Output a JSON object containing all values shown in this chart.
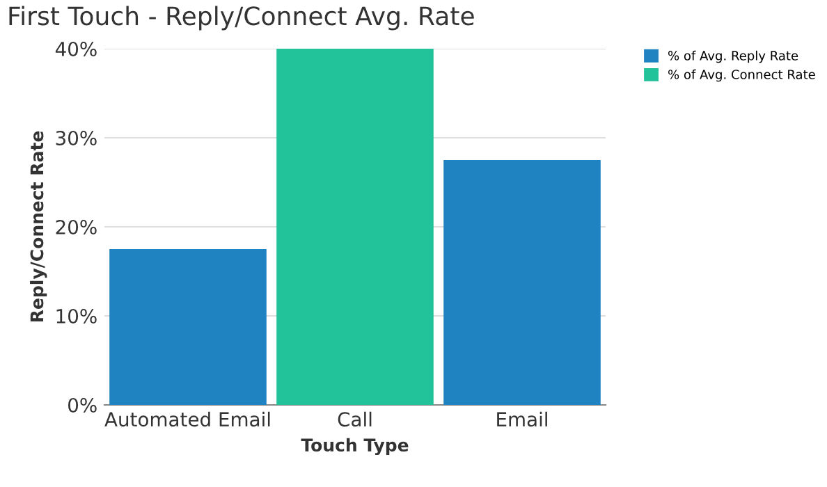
{
  "chart_data": {
    "type": "bar",
    "title": "First Touch - Reply/Connect Avg. Rate",
    "xlabel": "Touch Type",
    "ylabel": "Reply/Connect Rate",
    "categories": [
      "Automated Email",
      "Call",
      "Email"
    ],
    "series": [
      {
        "name": "% of Avg. Reply Rate",
        "color": "#1f83c1",
        "values": [
          17.5,
          null,
          27.5
        ]
      },
      {
        "name": "% of Avg. Connect Rate",
        "color": "#22c39a",
        "values": [
          null,
          40,
          null
        ]
      }
    ],
    "ylim": [
      0,
      40
    ],
    "yticks": [
      {
        "value": 0,
        "label": "0%"
      },
      {
        "value": 10,
        "label": "10%"
      },
      {
        "value": 20,
        "label": "20%"
      },
      {
        "value": 30,
        "label": "30%"
      },
      {
        "value": 40,
        "label": "40%"
      }
    ],
    "grid": "y",
    "legend": "top right"
  }
}
